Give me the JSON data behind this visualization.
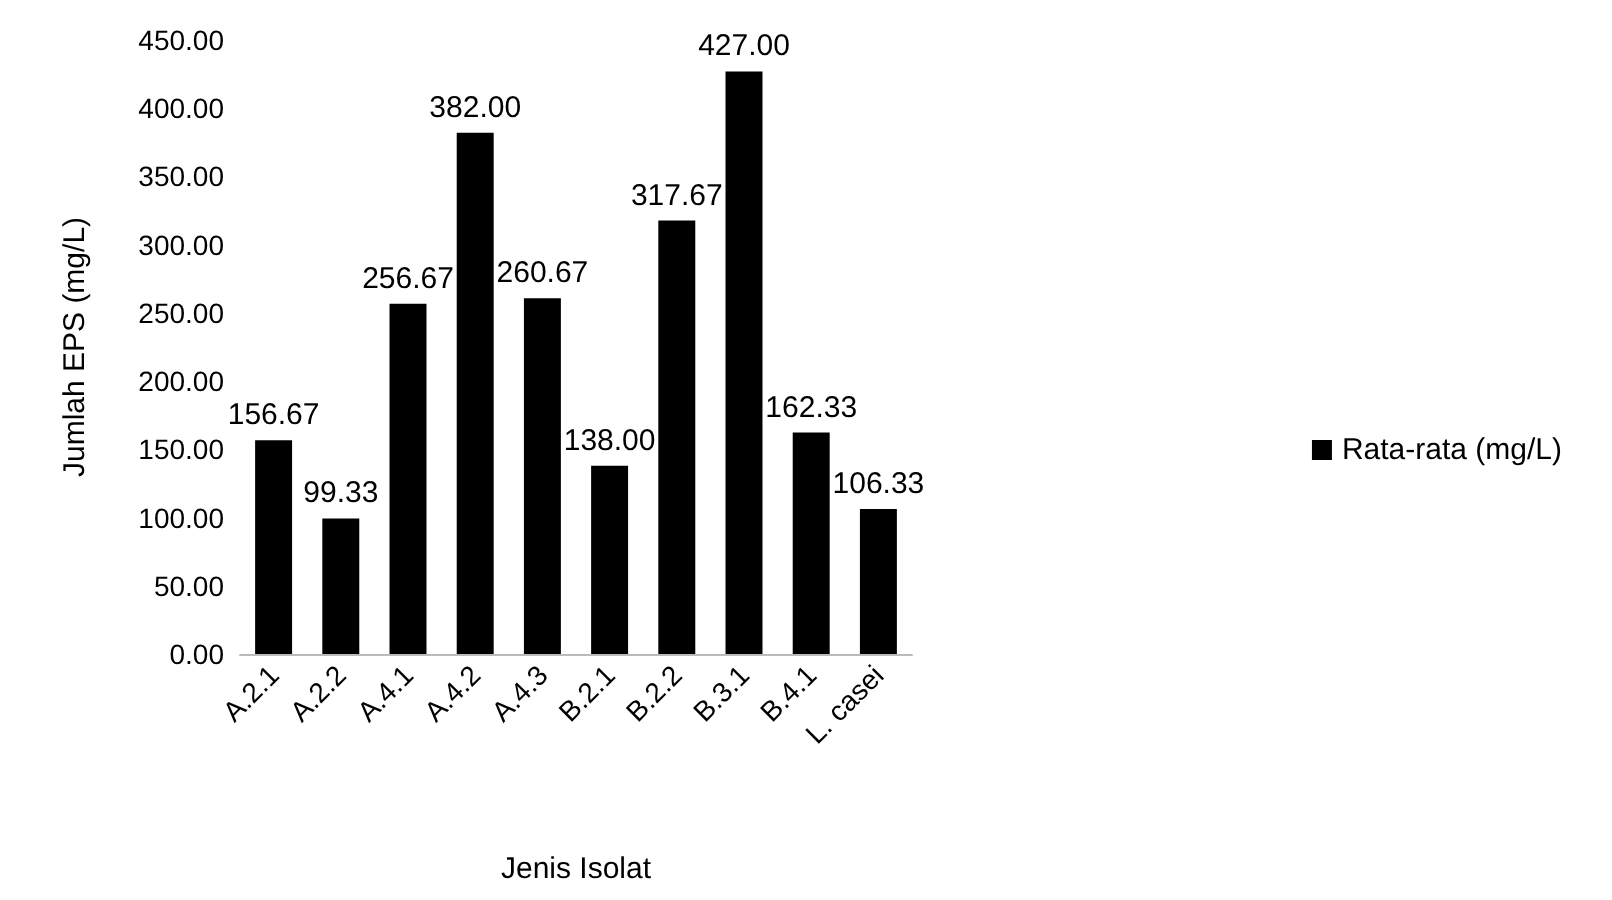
{
  "chart_data": {
    "type": "bar",
    "xlabel": "Jenis Isolat",
    "ylabel": "Jumlah EPS (mg/L)",
    "categories": [
      "A.2.1",
      "A.2.2",
      "A.4.1",
      "A.4.2",
      "A.4.3",
      "B.2.1",
      "B.2.2",
      "B.3.1",
      "B.4.1",
      "L. casei"
    ],
    "series": [
      {
        "name": "Rata-rata (mg/L)",
        "color": "#000000",
        "values": [
          156.67,
          99.33,
          256.67,
          382.0,
          260.67,
          138.0,
          317.67,
          427.0,
          162.33,
          106.33
        ],
        "value_labels": [
          "156.67",
          "99.33",
          "256.67",
          "382.00",
          "260.67",
          "138.00",
          "317.67",
          "427.00",
          "162.33",
          "106.33"
        ]
      }
    ],
    "ylim": [
      0,
      450
    ],
    "yticks": [
      {
        "value": 0,
        "label": "0.00"
      },
      {
        "value": 50,
        "label": "50.00"
      },
      {
        "value": 100,
        "label": "100.00"
      },
      {
        "value": 150,
        "label": "150.00"
      },
      {
        "value": 200,
        "label": "200.00"
      },
      {
        "value": 250,
        "label": "250.00"
      },
      {
        "value": 300,
        "label": "300.00"
      },
      {
        "value": 350,
        "label": "350.00"
      },
      {
        "value": 400,
        "label": "400.00"
      },
      {
        "value": 450,
        "label": "450.00"
      }
    ],
    "grid": false,
    "legend": "right"
  }
}
